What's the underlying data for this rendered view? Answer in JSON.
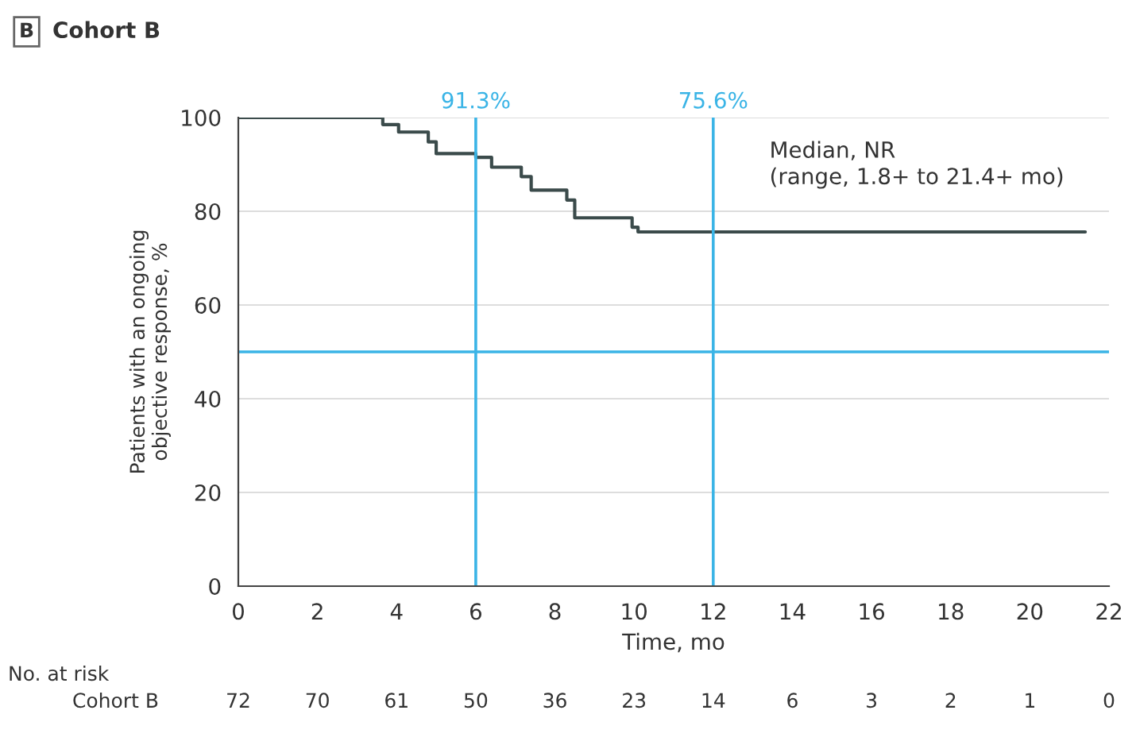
{
  "chart_data": {
    "type": "step",
    "title": "B",
    "subtitle": "Cohort B",
    "xlabel": "Time, mo",
    "ylabel": "Patients with an ongoing\nobjective response, %",
    "x": [
      0,
      3.65,
      4.05,
      4.8,
      5.0,
      6.0,
      6.4,
      7.15,
      7.4,
      8.3,
      8.5,
      9.95,
      10.1,
      21.4
    ],
    "series": [
      {
        "color": "#3b4b4b",
        "values": [
          100,
          98.5,
          96.9,
          94.8,
          92.3,
          91.5,
          89.4,
          87.4,
          84.5,
          82.4,
          78.6,
          76.6,
          75.6,
          75.6
        ]
      }
    ],
    "xlim": [
      0,
      22
    ],
    "xticks": [
      0,
      2,
      4,
      6,
      8,
      10,
      12,
      14,
      16,
      18,
      20,
      22
    ],
    "ylim": [
      0,
      100
    ],
    "yticks": [
      0,
      20,
      40,
      60,
      80,
      100
    ],
    "grid": "y",
    "ref_lines": [
      {
        "axis": "x",
        "value": 6,
        "color": "#3ab4e6"
      },
      {
        "axis": "x",
        "value": 12,
        "color": "#3ab4e6"
      },
      {
        "axis": "y",
        "value": 50,
        "color": "#3ab4e6"
      }
    ],
    "annotations": [
      "91.3%",
      "75.6%",
      "Median, NR\n(range, 1.8+ to 21.4+ mo)",
      "No. at risk",
      "Cohort B",
      "72",
      "70",
      "61",
      "50",
      "36",
      "23",
      "14",
      "6",
      "3",
      "2",
      "1",
      "0"
    ]
  }
}
